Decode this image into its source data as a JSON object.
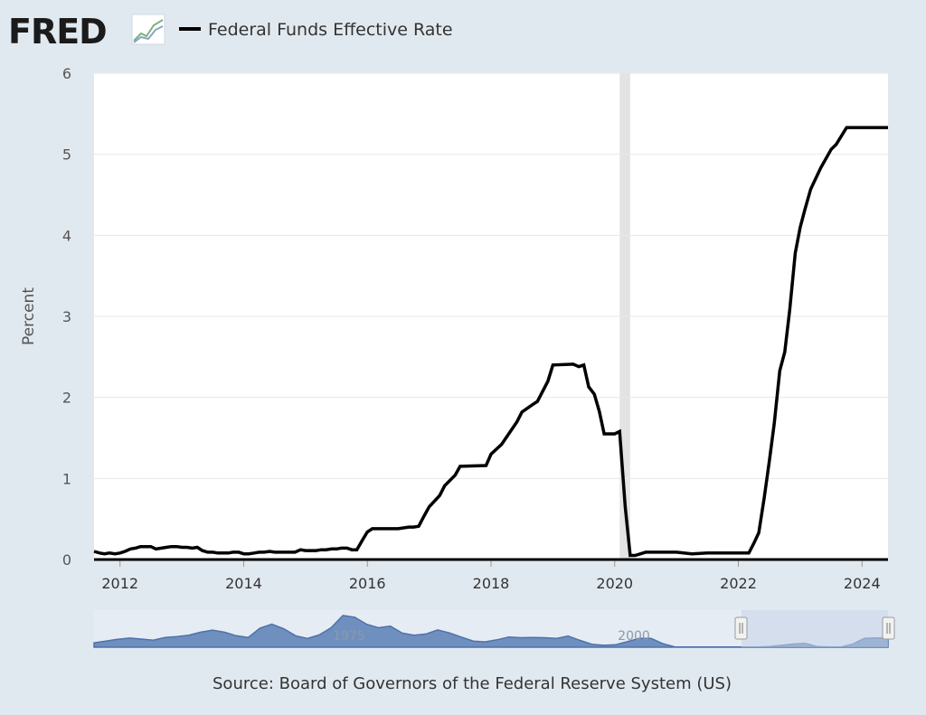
{
  "logo": {
    "text": "FRED"
  },
  "legend": {
    "label": "Federal Funds Effective Rate",
    "color": "#000000"
  },
  "source": "Source: Board of Governors of the Federal Reserve System (US)",
  "chart_data": {
    "type": "line",
    "title": "Federal Funds Effective Rate",
    "xlabel": "",
    "ylabel": "Percent",
    "ylim": [
      0,
      6
    ],
    "xlim": [
      2011.58,
      2024.42
    ],
    "y_ticks": [
      "0",
      "1",
      "2",
      "3",
      "4",
      "5",
      "6"
    ],
    "x_ticks": [
      "2012",
      "2014",
      "2016",
      "2018",
      "2020",
      "2022",
      "2024"
    ],
    "recession": {
      "start": 2020.08,
      "end": 2020.25,
      "color": "#e3e3e3"
    },
    "series": [
      {
        "name": "Federal Funds Effective Rate",
        "color": "#000000",
        "x": [
          2011.58,
          2011.67,
          2011.75,
          2011.83,
          2011.92,
          2012.0,
          2012.08,
          2012.17,
          2012.25,
          2012.33,
          2012.42,
          2012.5,
          2012.58,
          2012.67,
          2012.75,
          2012.83,
          2012.92,
          2013.0,
          2013.08,
          2013.17,
          2013.25,
          2013.33,
          2013.42,
          2013.5,
          2013.58,
          2013.67,
          2013.75,
          2013.83,
          2013.92,
          2014.0,
          2014.08,
          2014.17,
          2014.25,
          2014.33,
          2014.42,
          2014.5,
          2014.58,
          2014.67,
          2014.75,
          2014.83,
          2014.92,
          2015.0,
          2015.08,
          2015.17,
          2015.25,
          2015.33,
          2015.42,
          2015.5,
          2015.58,
          2015.67,
          2015.75,
          2015.83,
          2015.92,
          2016.0,
          2016.08,
          2016.5,
          2016.67,
          2016.75,
          2016.83,
          2016.92,
          2017.0,
          2017.17,
          2017.25,
          2017.42,
          2017.5,
          2017.92,
          2018.0,
          2018.17,
          2018.25,
          2018.42,
          2018.5,
          2018.67,
          2018.75,
          2018.92,
          2019.0,
          2019.33,
          2019.42,
          2019.5,
          2019.58,
          2019.67,
          2019.75,
          2019.83,
          2019.92,
          2020.0,
          2020.08,
          2020.17,
          2020.25,
          2020.33,
          2020.5,
          2020.75,
          2021.0,
          2021.25,
          2021.5,
          2021.75,
          2022.0,
          2022.17,
          2022.25,
          2022.33,
          2022.42,
          2022.5,
          2022.58,
          2022.67,
          2022.75,
          2022.83,
          2022.92,
          2023.0,
          2023.08,
          2023.17,
          2023.33,
          2023.5,
          2023.58,
          2023.75,
          2024.0,
          2024.25,
          2024.42
        ],
        "values": [
          0.1,
          0.08,
          0.07,
          0.08,
          0.07,
          0.08,
          0.1,
          0.13,
          0.14,
          0.16,
          0.16,
          0.16,
          0.13,
          0.14,
          0.15,
          0.16,
          0.16,
          0.15,
          0.15,
          0.14,
          0.15,
          0.11,
          0.09,
          0.09,
          0.08,
          0.08,
          0.08,
          0.09,
          0.09,
          0.07,
          0.07,
          0.08,
          0.09,
          0.09,
          0.1,
          0.09,
          0.09,
          0.09,
          0.09,
          0.09,
          0.12,
          0.11,
          0.11,
          0.11,
          0.12,
          0.12,
          0.13,
          0.13,
          0.14,
          0.14,
          0.12,
          0.12,
          0.24,
          0.34,
          0.38,
          0.38,
          0.4,
          0.4,
          0.41,
          0.54,
          0.65,
          0.79,
          0.91,
          1.04,
          1.15,
          1.16,
          1.3,
          1.42,
          1.51,
          1.7,
          1.82,
          1.91,
          1.95,
          2.2,
          2.4,
          2.41,
          2.38,
          2.4,
          2.13,
          2.04,
          1.83,
          1.55,
          1.55,
          1.55,
          1.58,
          0.65,
          0.05,
          0.05,
          0.09,
          0.09,
          0.09,
          0.07,
          0.08,
          0.08,
          0.08,
          0.08,
          0.2,
          0.33,
          0.77,
          1.21,
          1.68,
          2.33,
          2.56,
          3.08,
          3.78,
          4.1,
          4.33,
          4.57,
          4.83,
          5.06,
          5.12,
          5.33,
          5.33,
          5.33,
          5.33
        ]
      }
    ],
    "navigator": {
      "labels": [
        "1975",
        "2000"
      ],
      "fill_color": "#6f8fbf",
      "selection_color": "#c5d3e8",
      "values": [
        2.5,
        3.5,
        4.5,
        5.2,
        4.6,
        4.0,
        5.5,
        6.0,
        6.8,
        8.5,
        9.7,
        8.5,
        6.5,
        5.5,
        10.8,
        13.0,
        10.5,
        6.5,
        5.0,
        7.0,
        11.0,
        18.0,
        17.0,
        13.0,
        11.0,
        12.0,
        8.0,
        6.8,
        7.5,
        9.8,
        8.1,
        5.7,
        3.5,
        3.0,
        4.2,
        5.8,
        5.4,
        5.5,
        5.4,
        5.0,
        6.3,
        3.9,
        1.7,
        1.1,
        1.4,
        3.2,
        5.0,
        5.0,
        2.0,
        0.2,
        0.1,
        0.1,
        0.1,
        0.1,
        0.1,
        0.1,
        0.1,
        0.4,
        1.0,
        1.8,
        2.2,
        0.4,
        0.1,
        0.1,
        1.7,
        5.0,
        5.3,
        5.3
      ]
    }
  }
}
